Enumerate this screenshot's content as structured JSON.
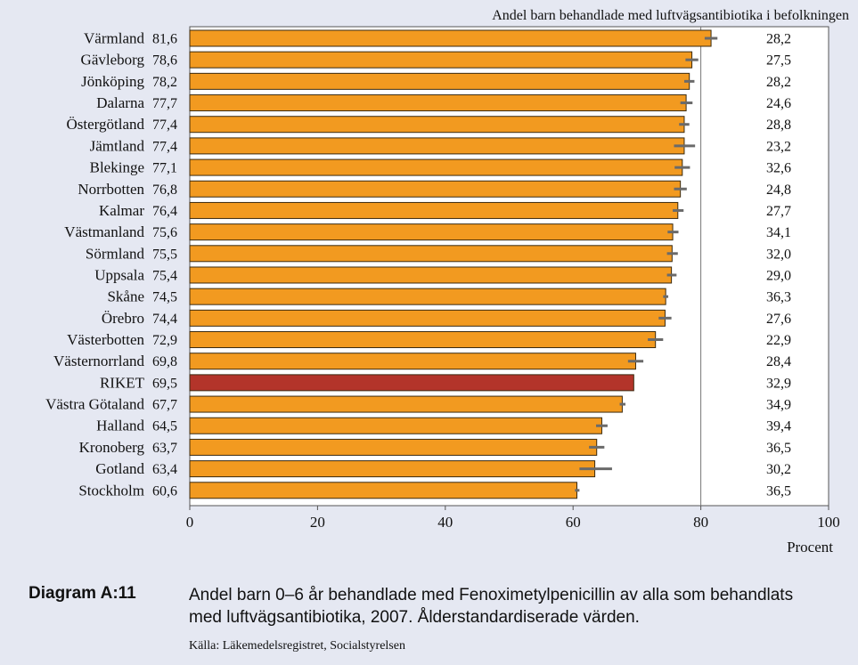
{
  "chart_data": {
    "type": "bar",
    "orientation": "horizontal",
    "title": "Andel barn behandlade med luftvägsantibiotika i befolkningen",
    "xlabel": "Procent",
    "xlim": [
      0,
      100
    ],
    "xticks": [
      "0",
      "20",
      "40",
      "60",
      "80",
      "100"
    ],
    "reference_line": 80,
    "colors": {
      "bar": "#f29a20",
      "highlight": "#b3342a",
      "error": "#6a6a6a"
    },
    "bars": [
      {
        "region": "Värmland",
        "value_label": "81,6",
        "value": 81.6,
        "err": [
          80.6,
          82.6
        ],
        "share": "28,2"
      },
      {
        "region": "Gävleborg",
        "value_label": "78,6",
        "value": 78.6,
        "err": [
          77.6,
          79.6
        ],
        "share": "27,5"
      },
      {
        "region": "Jönköping",
        "value_label": "78,2",
        "value": 78.2,
        "err": [
          77.4,
          79.0
        ],
        "share": "28,2"
      },
      {
        "region": "Dalarna",
        "value_label": "77,7",
        "value": 77.7,
        "err": [
          76.8,
          78.7
        ],
        "share": "24,6"
      },
      {
        "region": "Östergötland",
        "value_label": "77,4",
        "value": 77.4,
        "err": [
          76.6,
          78.2
        ],
        "share": "28,8"
      },
      {
        "region": "Jämtland",
        "value_label": "77,4",
        "value": 77.4,
        "err": [
          75.8,
          79.1
        ],
        "share": "23,2"
      },
      {
        "region": "Blekinge",
        "value_label": "77,1",
        "value": 77.1,
        "err": [
          75.9,
          78.3
        ],
        "share": "32,6"
      },
      {
        "region": "Norrbotten",
        "value_label": "76,8",
        "value": 76.8,
        "err": [
          75.8,
          77.8
        ],
        "share": "24,8"
      },
      {
        "region": "Kalmar",
        "value_label": "76,4",
        "value": 76.4,
        "err": [
          75.6,
          77.3
        ],
        "share": "27,7"
      },
      {
        "region": "Västmanland",
        "value_label": "75,6",
        "value": 75.6,
        "err": [
          74.8,
          76.5
        ],
        "share": "34,1"
      },
      {
        "region": "Sörmland",
        "value_label": "75,5",
        "value": 75.5,
        "err": [
          74.7,
          76.4
        ],
        "share": "32,0"
      },
      {
        "region": "Uppsala",
        "value_label": "75,4",
        "value": 75.4,
        "err": [
          74.7,
          76.2
        ],
        "share": "29,0"
      },
      {
        "region": "Skåne",
        "value_label": "74,5",
        "value": 74.5,
        "err": [
          74.1,
          74.9
        ],
        "share": "36,3"
      },
      {
        "region": "Örebro",
        "value_label": "74,4",
        "value": 74.4,
        "err": [
          73.4,
          75.4
        ],
        "share": "27,6"
      },
      {
        "region": "Västerbotten",
        "value_label": "72,9",
        "value": 72.9,
        "err": [
          71.7,
          74.1
        ],
        "share": "22,9"
      },
      {
        "region": "Västernorrland",
        "value_label": "69,8",
        "value": 69.8,
        "err": [
          68.6,
          71.0
        ],
        "share": "28,4"
      },
      {
        "region": "RIKET",
        "value_label": "69,5",
        "value": 69.5,
        "highlight": true,
        "share": "32,9"
      },
      {
        "region": "Västra Götaland",
        "value_label": "67,7",
        "value": 67.7,
        "err": [
          67.3,
          68.2
        ],
        "share": "34,9"
      },
      {
        "region": "Halland",
        "value_label": "64,5",
        "value": 64.5,
        "err": [
          63.6,
          65.4
        ],
        "share": "39,4"
      },
      {
        "region": "Kronoberg",
        "value_label": "63,7",
        "value": 63.7,
        "err": [
          62.5,
          64.9
        ],
        "share": "36,5"
      },
      {
        "region": "Gotland",
        "value_label": "63,4",
        "value": 63.4,
        "err": [
          61.0,
          66.1
        ],
        "share": "30,2"
      },
      {
        "region": "Stockholm",
        "value_label": "60,6",
        "value": 60.6,
        "err": [
          60.3,
          61.0
        ],
        "share": "36,5"
      }
    ]
  },
  "caption": {
    "label": "Diagram A:11",
    "text": "Andel barn 0–6 år behandlade med Fenoximetylpenicillin av alla som behandlats med luftvägsantibiotika, 2007. Ålderstandardiserade värden.",
    "source": "Källa: Läkemedelsregistret, Socialstyrelsen"
  }
}
